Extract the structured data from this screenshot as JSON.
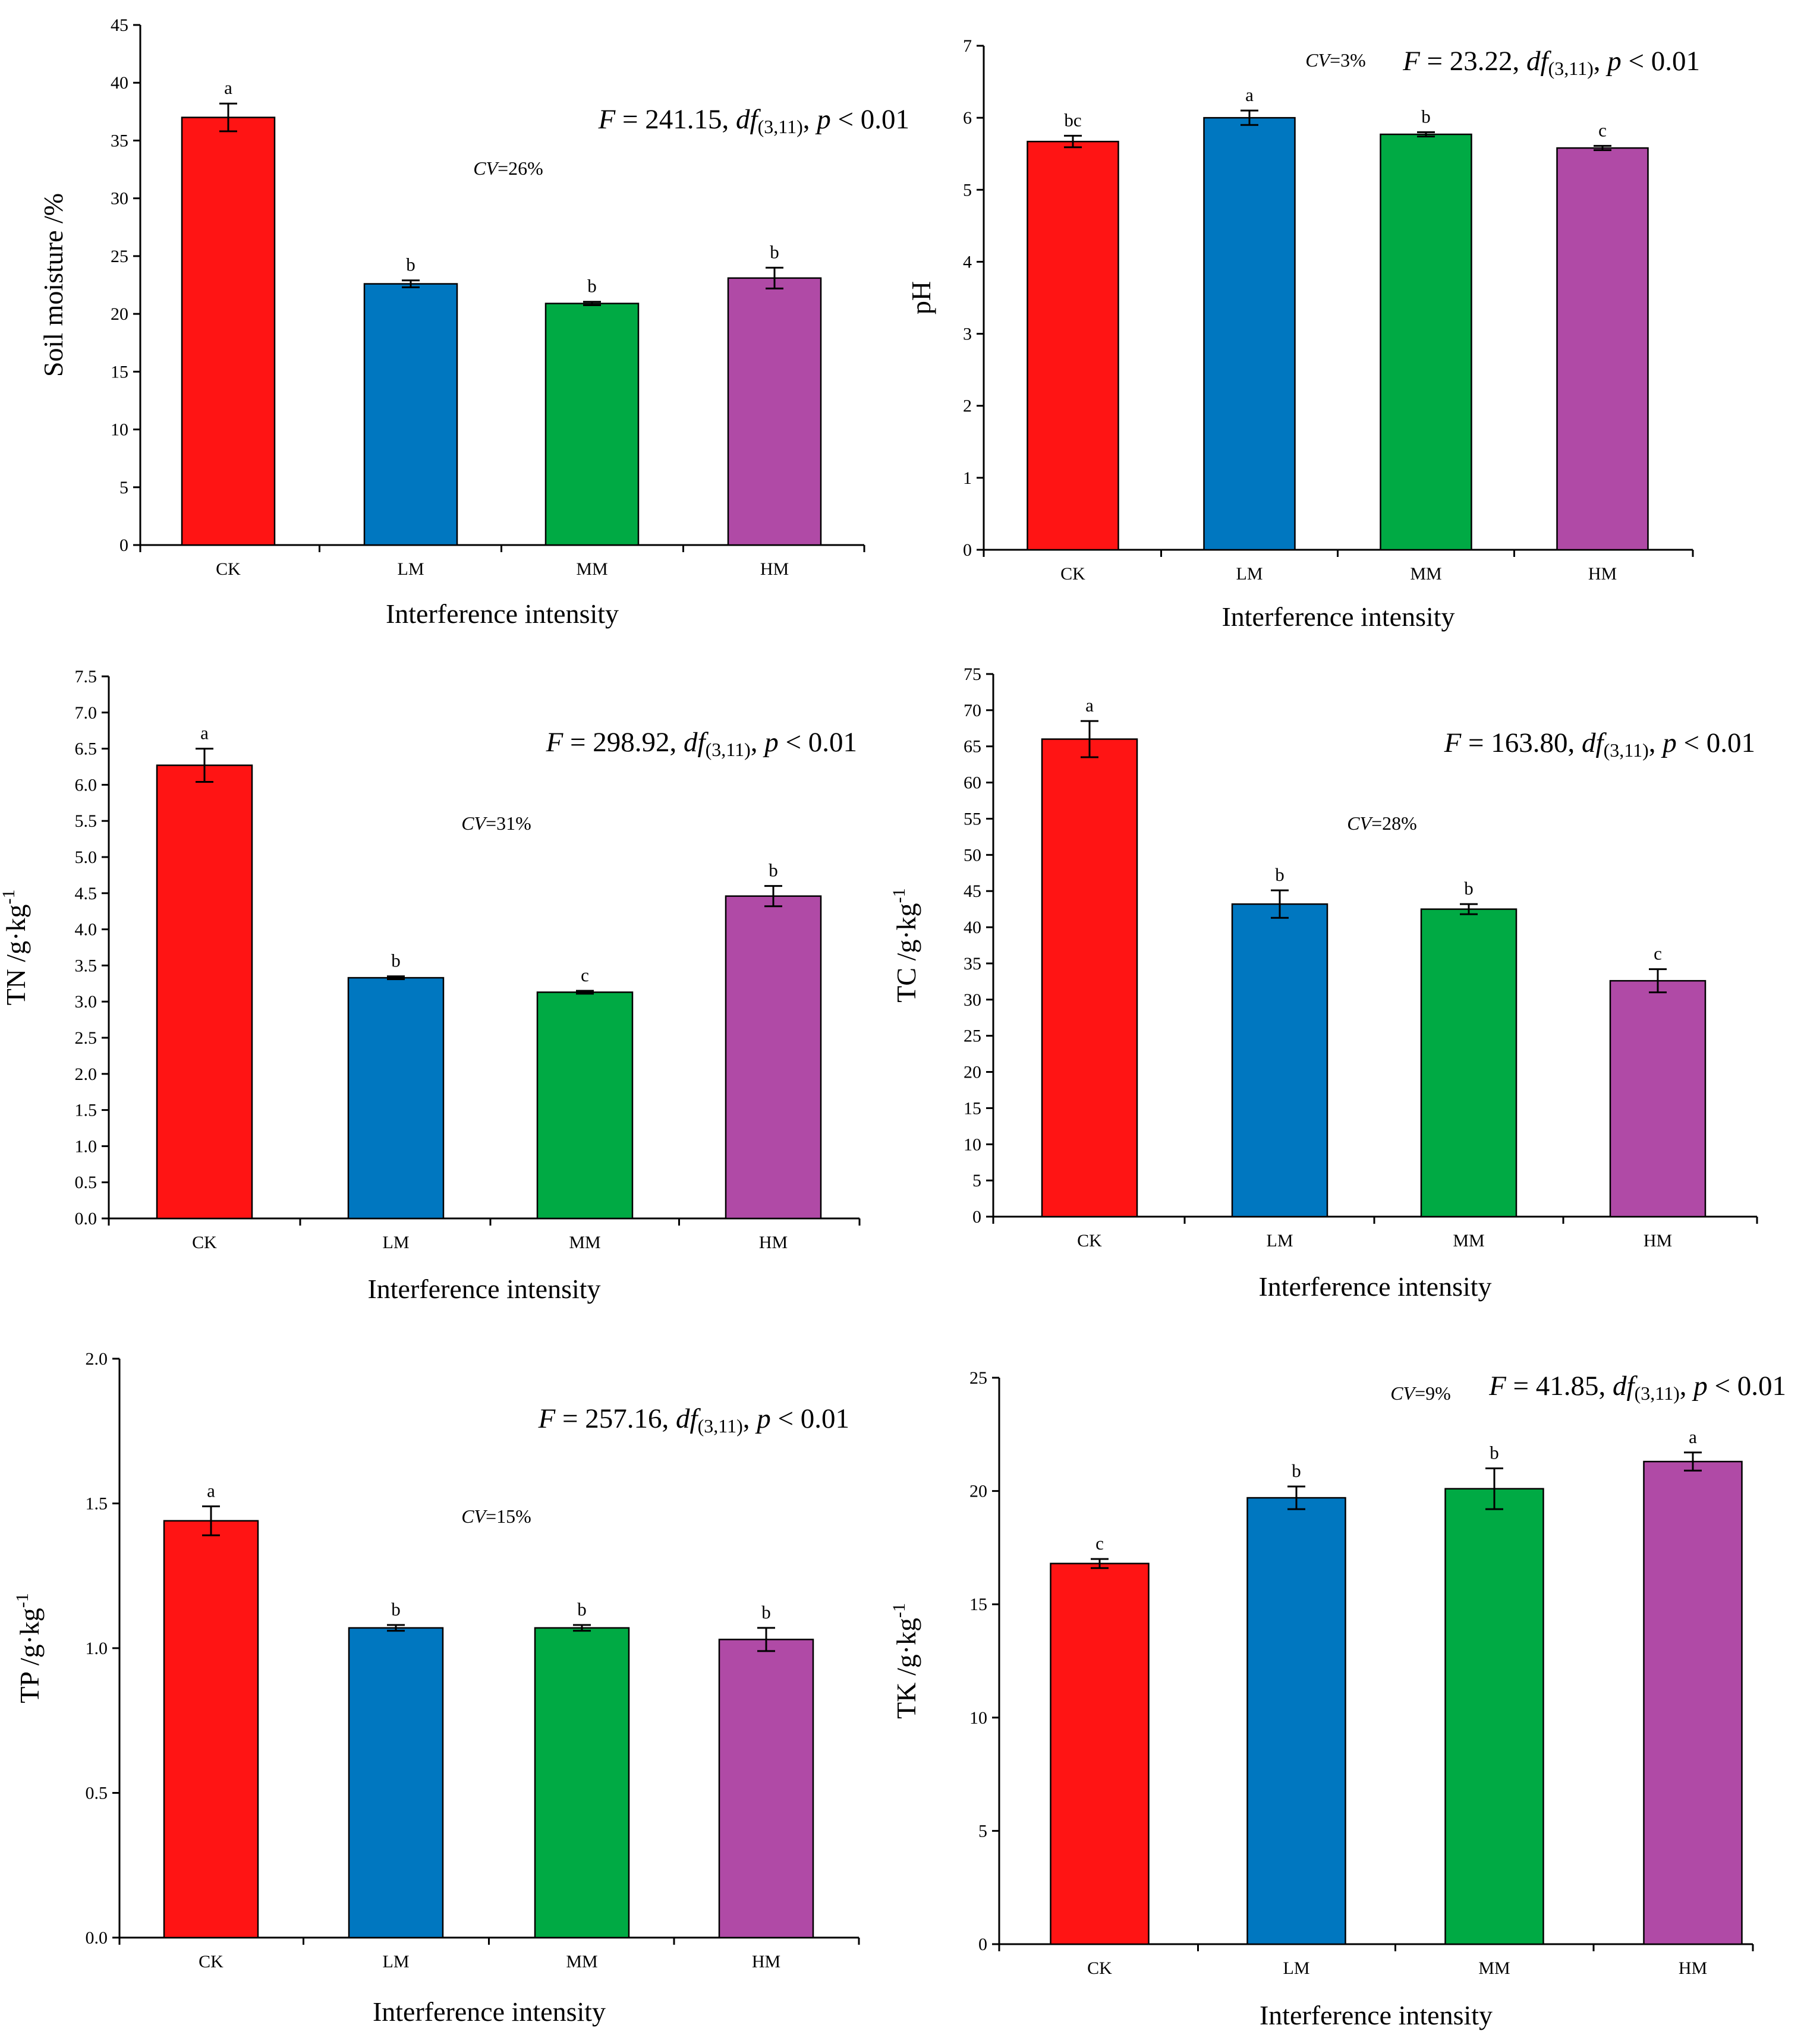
{
  "chart_data": [
    {
      "type": "bar",
      "id": "soil-moisture",
      "xlabel": "Interference intensity",
      "ylabel": "Soil moisture /%",
      "ylim": [
        0,
        45
      ],
      "yticks": [
        0,
        5,
        10,
        15,
        20,
        25,
        30,
        35,
        40,
        45
      ],
      "yticks_text": [
        "0",
        "5",
        "10",
        "15",
        "20",
        "25",
        "30",
        "35",
        "40",
        "45"
      ],
      "categories": [
        "CK",
        "LM",
        "MM",
        "HM"
      ],
      "values": [
        37.0,
        22.6,
        20.9,
        23.1
      ],
      "errors": [
        1.2,
        0.3,
        0.15,
        0.9
      ],
      "letters": [
        "a",
        "b",
        "b",
        "b"
      ],
      "colors": [
        "#ff1414",
        "#0077c0",
        "#00aa44",
        "#b04aa6"
      ],
      "stat": "F = 241.15, df(3,11), p < 0.01",
      "cv": "CV=26%"
    },
    {
      "type": "bar",
      "id": "ph",
      "xlabel": "Interference intensity",
      "ylabel": "pH",
      "ylim": [
        0,
        7
      ],
      "yticks": [
        0,
        1,
        2,
        3,
        4,
        5,
        6,
        7
      ],
      "yticks_text": [
        "0",
        "1",
        "2",
        "3",
        "4",
        "5",
        "6",
        "7"
      ],
      "categories": [
        "CK",
        "LM",
        "MM",
        "HM"
      ],
      "values": [
        5.67,
        6.0,
        5.77,
        5.58
      ],
      "errors": [
        0.08,
        0.1,
        0.03,
        0.03
      ],
      "letters": [
        "bc",
        "a",
        "b",
        "c"
      ],
      "colors": [
        "#ff1414",
        "#0077c0",
        "#00aa44",
        "#b04aa6"
      ],
      "stat": "F = 23.22, df(3,11), p < 0.01",
      "cv": "CV=3%"
    },
    {
      "type": "bar",
      "id": "tn",
      "xlabel": "Interference intensity",
      "ylabel": "TN /g·kg-1",
      "ylim": [
        0,
        7.5
      ],
      "yticks": [
        0,
        0.5,
        1,
        1.5,
        2,
        2.5,
        3,
        3.5,
        4,
        4.5,
        5,
        5.5,
        6,
        6.5,
        7,
        7.5
      ],
      "yticks_text": [
        "0.0",
        "0.5",
        "1.0",
        "1.5",
        "2.0",
        "2.5",
        "3.0",
        "3.5",
        "4.0",
        "4.5",
        "5.0",
        "5.5",
        "6.0",
        "6.5",
        "7.0",
        "7.5"
      ],
      "categories": [
        "CK",
        "LM",
        "MM",
        "HM"
      ],
      "values": [
        6.27,
        3.33,
        3.13,
        4.46
      ],
      "errors": [
        0.23,
        0.02,
        0.02,
        0.14
      ],
      "letters": [
        "a",
        "b",
        "c",
        "b"
      ],
      "colors": [
        "#ff1414",
        "#0077c0",
        "#00aa44",
        "#b04aa6"
      ],
      "stat": "F = 298.92, df(3,11), p < 0.01",
      "cv": "CV=31%"
    },
    {
      "type": "bar",
      "id": "tc",
      "xlabel": "Interference intensity",
      "ylabel": "TC /g·kg-1",
      "ylim": [
        0,
        75
      ],
      "yticks": [
        0,
        5,
        10,
        15,
        20,
        25,
        30,
        35,
        40,
        45,
        50,
        55,
        60,
        65,
        70,
        75
      ],
      "yticks_text": [
        "0",
        "5",
        "10",
        "15",
        "20",
        "25",
        "30",
        "35",
        "40",
        "45",
        "50",
        "55",
        "60",
        "65",
        "70",
        "75"
      ],
      "categories": [
        "CK",
        "LM",
        "MM",
        "HM"
      ],
      "values": [
        66.0,
        43.2,
        42.5,
        32.6
      ],
      "errors": [
        2.5,
        1.9,
        0.7,
        1.6
      ],
      "letters": [
        "a",
        "b",
        "b",
        "c"
      ],
      "colors": [
        "#ff1414",
        "#0077c0",
        "#00aa44",
        "#b04aa6"
      ],
      "stat": "F = 163.80, df(3,11), p < 0.01",
      "cv": "CV=28%"
    },
    {
      "type": "bar",
      "id": "tp",
      "xlabel": "Interference intensity",
      "ylabel": "TP /g·kg-1",
      "ylim": [
        0,
        2.0
      ],
      "yticks": [
        0,
        0.5,
        1,
        1.5,
        2
      ],
      "yticks_text": [
        "0.0",
        "0.5",
        "1.0",
        "1.5",
        "2.0"
      ],
      "categories": [
        "CK",
        "LM",
        "MM",
        "HM"
      ],
      "values": [
        1.44,
        1.07,
        1.07,
        1.03
      ],
      "errors": [
        0.05,
        0.01,
        0.01,
        0.04
      ],
      "letters": [
        "a",
        "b",
        "b",
        "b"
      ],
      "colors": [
        "#ff1414",
        "#0077c0",
        "#00aa44",
        "#b04aa6"
      ],
      "stat": "F = 257.16, df(3,11), p < 0.01",
      "cv": "CV=15%"
    },
    {
      "type": "bar",
      "id": "tk",
      "xlabel": "Interference intensity",
      "ylabel": "TK /g·kg-1",
      "ylim": [
        0,
        25
      ],
      "yticks": [
        0,
        5,
        10,
        15,
        20,
        25
      ],
      "yticks_text": [
        "0",
        "5",
        "10",
        "15",
        "20",
        "25"
      ],
      "categories": [
        "CK",
        "LM",
        "MM",
        "HM"
      ],
      "values": [
        16.8,
        19.7,
        20.1,
        21.3
      ],
      "errors": [
        0.2,
        0.5,
        0.9,
        0.4
      ],
      "letters": [
        "c",
        "b",
        "b",
        "a"
      ],
      "colors": [
        "#ff1414",
        "#0077c0",
        "#00aa44",
        "#b04aa6"
      ],
      "stat": "F = 41.85, df(3,11), p < 0.01",
      "cv": "CV=9%"
    }
  ]
}
